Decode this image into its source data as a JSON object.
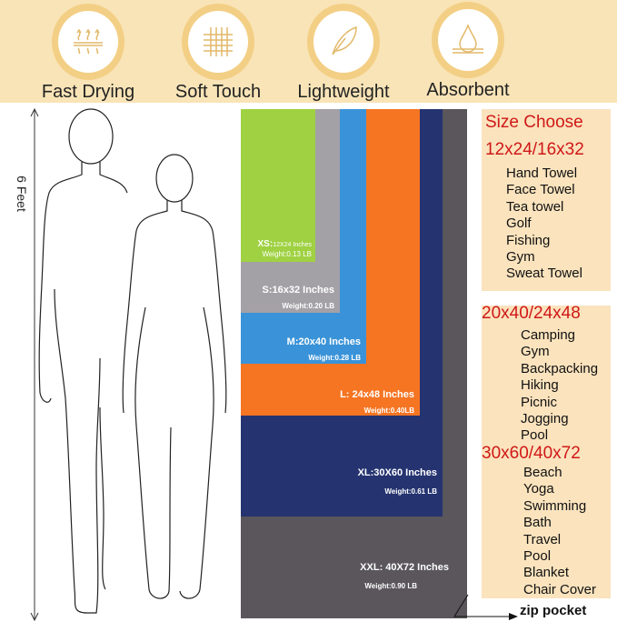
{
  "features": [
    {
      "label": "Fast Drying",
      "icon": "heat-waves-icon"
    },
    {
      "label": "Soft Touch",
      "icon": "fabric-weave-icon"
    },
    {
      "label": "Lightweight",
      "icon": "feather-icon"
    },
    {
      "label": "Absorbent",
      "icon": "water-drop-icon"
    }
  ],
  "height_label": "6 Feet",
  "sizes": [
    {
      "code": "XS:",
      "dims": "12X24 Inches",
      "weight": "Weight:0.13 LB",
      "color": "#9fd142"
    },
    {
      "label": "S:16x32 Inches",
      "weight": "Weight:0.20 LB",
      "color": "#a3a1a5"
    },
    {
      "label": "M:20x40 Inches",
      "weight": "Weight:0.28 LB",
      "color": "#3a93d8"
    },
    {
      "label": "L: 24x48 Inches",
      "weight": "Weight:0.40LB",
      "color": "#f57523"
    },
    {
      "label": "XL:30X60 Inches",
      "weight": "Weight:0.61 LB",
      "color": "#253470"
    },
    {
      "label": "XXL: 40X72 Inches",
      "weight": "Weight:0.90 LB",
      "color": "#5a565c"
    }
  ],
  "size_choose": {
    "title": "Size Choose",
    "groups": [
      {
        "heading": "12x24/16x32",
        "items": [
          "Hand Towel",
          "Face Towel",
          "Tea towel",
          "Golf",
          "Fishing",
          "Gym",
          "Sweat Towel"
        ]
      },
      {
        "heading": "20x40/24x48",
        "items": [
          "Camping",
          "Gym",
          "Backpacking",
          "Hiking",
          "Picnic",
          "Jogging",
          "Pool"
        ]
      },
      {
        "heading": "30x60/40x72",
        "items": [
          "Beach",
          "Yoga",
          "Swimming",
          "Bath",
          "Travel",
          "Pool",
          "Blanket",
          "Chair Cover"
        ]
      }
    ]
  },
  "zip_pocket": "zip pocket"
}
